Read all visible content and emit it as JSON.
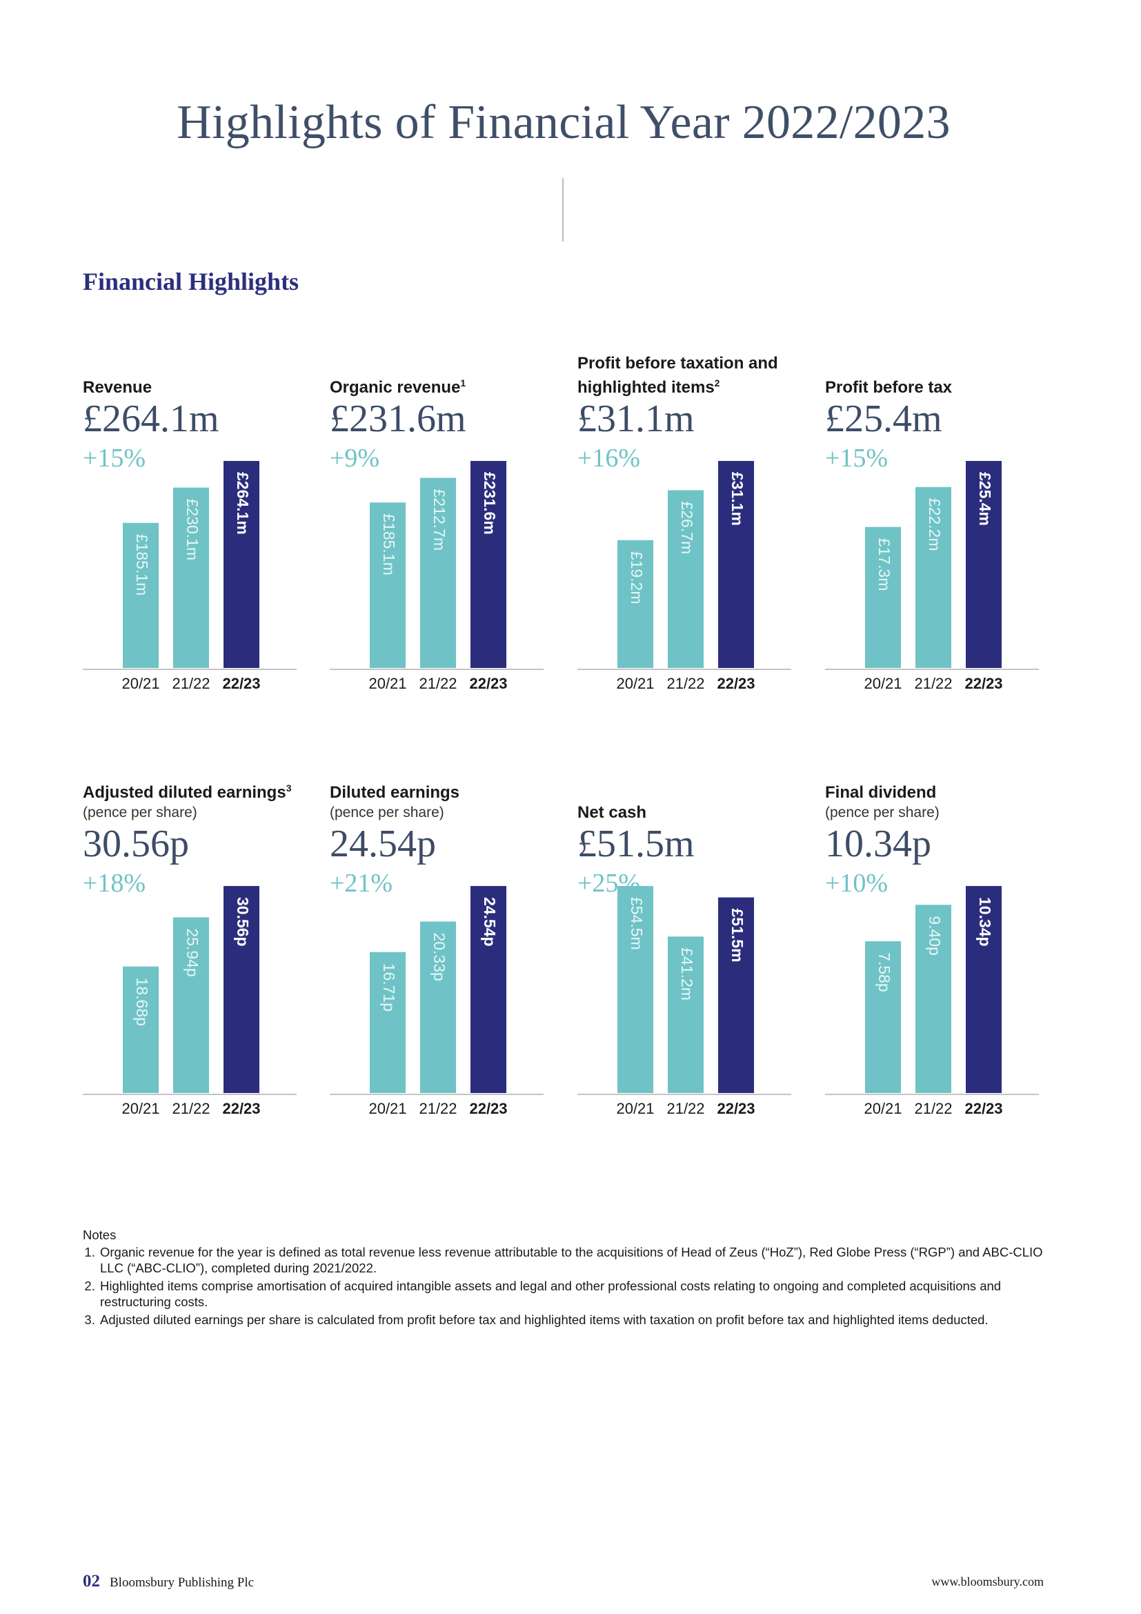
{
  "page": {
    "title": "Highlights of Financial Year 2022/2023",
    "section_heading": "Financial Highlights"
  },
  "colors": {
    "prior_years": "#6fc3c6",
    "current_year": "#2b2d7c",
    "value": "#3d4c66",
    "growth": "#6fc3c6"
  },
  "chart_data": [
    {
      "type": "bar",
      "title": "Revenue",
      "title_sup": "",
      "subtitle": "",
      "headline": "£264.1m",
      "growth": "+15%",
      "categories": [
        "20/21",
        "21/22",
        "22/23"
      ],
      "values": [
        185.1,
        230.1,
        264.1
      ],
      "labels": [
        "£185.1m",
        "£230.1m",
        "£264.1m"
      ],
      "highlight_index": 2,
      "ylim": [
        0,
        264.1
      ]
    },
    {
      "type": "bar",
      "title": "Organic revenue",
      "title_sup": "1",
      "subtitle": "",
      "headline": "£231.6m",
      "growth": "+9%",
      "categories": [
        "20/21",
        "21/22",
        "22/23"
      ],
      "values": [
        185.1,
        212.7,
        231.6
      ],
      "labels": [
        "£185.1m",
        "£212.7m",
        "£231.6m"
      ],
      "highlight_index": 2,
      "ylim": [
        0,
        231.6
      ]
    },
    {
      "type": "bar",
      "title": "Profit before taxation and highlighted items",
      "title_sup": "2",
      "subtitle": "",
      "headline": "£31.1m",
      "growth": "+16%",
      "categories": [
        "20/21",
        "21/22",
        "22/23"
      ],
      "values": [
        19.2,
        26.7,
        31.1
      ],
      "labels": [
        "£19.2m",
        "£26.7m",
        "£31.1m"
      ],
      "highlight_index": 2,
      "ylim": [
        0,
        31.1
      ]
    },
    {
      "type": "bar",
      "title": "Profit before tax",
      "title_sup": "",
      "subtitle": "",
      "headline": "£25.4m",
      "growth": "+15%",
      "categories": [
        "20/21",
        "21/22",
        "22/23"
      ],
      "values": [
        17.3,
        22.2,
        25.4
      ],
      "labels": [
        "£17.3m",
        "£22.2m",
        "£25.4m"
      ],
      "highlight_index": 2,
      "ylim": [
        0,
        25.4
      ]
    },
    {
      "type": "bar",
      "title": "Adjusted diluted earnings",
      "title_sup": "3",
      "subtitle": "(pence per share)",
      "headline": "30.56p",
      "growth": "+18%",
      "categories": [
        "20/21",
        "21/22",
        "22/23"
      ],
      "values": [
        18.68,
        25.94,
        30.56
      ],
      "labels": [
        "18.68p",
        "25.94p",
        "30.56p"
      ],
      "highlight_index": 2,
      "ylim": [
        0,
        30.56
      ]
    },
    {
      "type": "bar",
      "title": "Diluted earnings",
      "title_sup": "",
      "subtitle": "(pence per share)",
      "headline": "24.54p",
      "growth": "+21%",
      "categories": [
        "20/21",
        "21/22",
        "22/23"
      ],
      "values": [
        16.71,
        20.33,
        24.54
      ],
      "labels": [
        "16.71p",
        "20.33p",
        "24.54p"
      ],
      "highlight_index": 2,
      "ylim": [
        0,
        24.54
      ]
    },
    {
      "type": "bar",
      "title": "Net cash",
      "title_sup": "",
      "subtitle": "",
      "headline": "£51.5m",
      "growth": "+25%",
      "categories": [
        "20/21",
        "21/22",
        "22/23"
      ],
      "values": [
        54.5,
        41.2,
        51.5
      ],
      "labels": [
        "£54.5m",
        "£41.2m",
        "£51.5m"
      ],
      "highlight_index": 2,
      "ylim": [
        0,
        54.5
      ]
    },
    {
      "type": "bar",
      "title": "Final dividend",
      "title_sup": "",
      "subtitle": "(pence per share)",
      "headline": "10.34p",
      "growth": "+10%",
      "categories": [
        "20/21",
        "21/22",
        "22/23"
      ],
      "values": [
        7.58,
        9.4,
        10.34
      ],
      "labels": [
        "7.58p",
        "9.40p",
        "10.34p"
      ],
      "highlight_index": 2,
      "ylim": [
        0,
        10.34
      ]
    }
  ],
  "notes": {
    "title": "Notes",
    "items": [
      "Organic revenue for the year is defined as total revenue less revenue attributable to the acquisitions of Head of Zeus (“HoZ”), Red Globe Press (“RGP”) and ABC-CLIO LLC (“ABC-CLIO”), completed during 2021/2022.",
      "Highlighted items comprise amortisation of acquired intangible assets and legal and other professional costs relating to ongoing and completed acquisitions and restructuring costs.",
      "Adjusted diluted earnings per share is calculated from profit before tax and highlighted items with taxation on profit before tax and highlighted items deducted."
    ]
  },
  "footer": {
    "page_number": "02",
    "company": "Bloomsbury Publishing Plc",
    "url": "www.bloomsbury.com"
  }
}
